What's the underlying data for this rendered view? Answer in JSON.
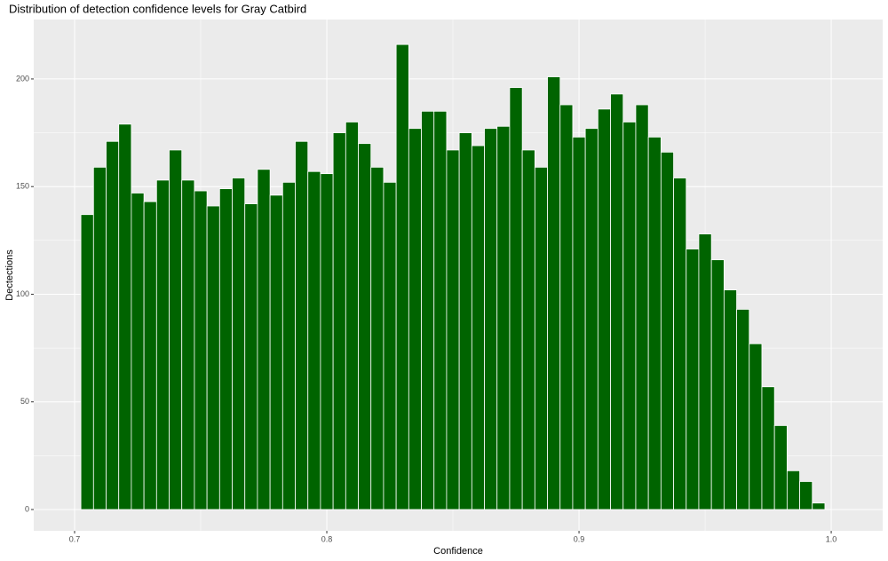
{
  "chart_data": {
    "type": "histogram",
    "title": "Distribution of detection confidence levels for Gray Catbird",
    "x_label": "Confidence",
    "y_label": "Dectections",
    "bins": [
      0.7025,
      0.7075,
      0.7125,
      0.7175,
      0.7225,
      0.7275,
      0.7325,
      0.7375,
      0.7425,
      0.7475,
      0.7525,
      0.7575,
      0.7625,
      0.7675,
      0.7725,
      0.7775,
      0.7825,
      0.7875,
      0.7925,
      0.7975,
      0.8025,
      0.8075,
      0.8125,
      0.8175,
      0.8225,
      0.8275,
      0.8325,
      0.8375,
      0.8425,
      0.8475,
      0.8525,
      0.8575,
      0.8625,
      0.8675,
      0.8725,
      0.8775,
      0.8825,
      0.8875,
      0.8925,
      0.8975,
      0.9025,
      0.9075,
      0.9125,
      0.9175,
      0.9225,
      0.9275,
      0.9325,
      0.9375,
      0.9425,
      0.9475,
      0.9525,
      0.9575,
      0.9625,
      0.9675,
      0.9725,
      0.9775,
      0.9825,
      0.9875,
      0.9925,
      0.9975
    ],
    "values": [
      137,
      159,
      171,
      179,
      147,
      143,
      153,
      167,
      153,
      148,
      141,
      149,
      154,
      142,
      158,
      146,
      152,
      171,
      157,
      156,
      175,
      180,
      170,
      159,
      152,
      216,
      177,
      185,
      185,
      167,
      175,
      169,
      177,
      178,
      196,
      167,
      159,
      201,
      188,
      173,
      177,
      186,
      193,
      180,
      188,
      173,
      166,
      154,
      121,
      128,
      116,
      102,
      93,
      77,
      57,
      39,
      18,
      13,
      3
    ],
    "color": "#006400",
    "xlim": [
      0.6838,
      1.0204
    ],
    "xticks": [
      0.7,
      0.8,
      0.9,
      {
        "value": 1,
        "label": "1.0"
      }
    ],
    "ylim": [
      -9.9,
      227.6
    ],
    "yticks": [
      0,
      50,
      100,
      150,
      200
    ],
    "grid": true
  }
}
